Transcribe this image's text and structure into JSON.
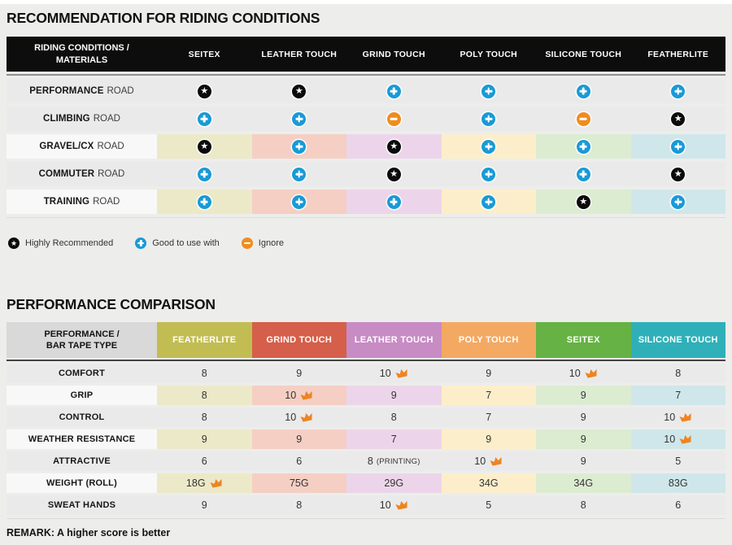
{
  "palette": {
    "page_bg": "#ededec",
    "table1_header_bg": "#0d0d0d",
    "table2_corner_bg": "#d9d9d9",
    "row_gray": "#eaeaea",
    "row_light_label": "#f8f8f8",
    "plus_blue": "#199ad6",
    "minus_orange": "#f08c1e",
    "star_black": "#0b0b0b",
    "crown_orange": "#ee8421",
    "tints": [
      "#ece9c8",
      "#f5cfc3",
      "#ecd5ea",
      "#fdeecb",
      "#dcecd1",
      "#cfe7ea"
    ]
  },
  "section1": {
    "title": "RECOMMENDATION FOR RIDING CONDITIONS",
    "table": {
      "corner_line1": "RIDING CONDITIONS /",
      "corner_line2": "MATERIALS",
      "columns": [
        "SEITEX",
        "LEATHER TOUCH",
        "GRIND TOUCH",
        "POLY TOUCH",
        "SILICONE TOUCH",
        "FEATHERLITE"
      ],
      "rows": [
        {
          "label_bold": "PERFORMANCE",
          "label_rest": "ROAD",
          "tinted": false,
          "cells": [
            "star",
            "star",
            "plus",
            "plus",
            "plus",
            "plus"
          ]
        },
        {
          "label_bold": "CLIMBING",
          "label_rest": "ROAD",
          "tinted": false,
          "cells": [
            "plus",
            "plus",
            "minus",
            "plus",
            "minus",
            "star"
          ]
        },
        {
          "label_bold": "GRAVEL/CX",
          "label_rest": "ROAD",
          "tinted": true,
          "cells": [
            "star",
            "plus",
            "star",
            "plus",
            "plus",
            "plus"
          ]
        },
        {
          "label_bold": "COMMUTER",
          "label_rest": "ROAD",
          "tinted": false,
          "cells": [
            "plus",
            "plus",
            "star",
            "plus",
            "plus",
            "star"
          ]
        },
        {
          "label_bold": "TRAINING",
          "label_rest": "ROAD",
          "tinted": true,
          "cells": [
            "plus",
            "plus",
            "plus",
            "plus",
            "star",
            "plus"
          ]
        }
      ]
    },
    "legend": [
      {
        "icon": "star",
        "label": "Highly Recommended"
      },
      {
        "icon": "plus",
        "label": "Good to use with"
      },
      {
        "icon": "minus",
        "label": "Ignore"
      }
    ]
  },
  "section2": {
    "title": "PERFORMANCE COMPARISON",
    "table": {
      "corner_line1": "PERFORMANCE /",
      "corner_line2": "BAR TAPE TYPE",
      "columns": [
        {
          "label": "FEATHERLITE",
          "color": "#c2bd53"
        },
        {
          "label": "GRIND TOUCH",
          "color": "#d55f4a"
        },
        {
          "label": "LEATHER TOUCH",
          "color": "#c78cc4"
        },
        {
          "label": "POLY TOUCH",
          "color": "#f4a963"
        },
        {
          "label": "SEITEX",
          "color": "#66b244"
        },
        {
          "label": "SILICONE TOUCH",
          "color": "#2fb0b8"
        }
      ],
      "rows": [
        {
          "label": "COMFORT",
          "tinted": false,
          "cells": [
            {
              "v": "8"
            },
            {
              "v": "9"
            },
            {
              "v": "10",
              "crown": true
            },
            {
              "v": "9"
            },
            {
              "v": "10",
              "crown": true
            },
            {
              "v": "8"
            }
          ]
        },
        {
          "label": "GRIP",
          "tinted": true,
          "cells": [
            {
              "v": "8"
            },
            {
              "v": "10",
              "crown": true
            },
            {
              "v": "9"
            },
            {
              "v": "7"
            },
            {
              "v": "9"
            },
            {
              "v": "7"
            }
          ]
        },
        {
          "label": "CONTROL",
          "tinted": false,
          "cells": [
            {
              "v": "8"
            },
            {
              "v": "10",
              "crown": true
            },
            {
              "v": "8"
            },
            {
              "v": "7"
            },
            {
              "v": "9"
            },
            {
              "v": "10",
              "crown": true
            }
          ]
        },
        {
          "label": "WEATHER RESISTANCE",
          "tinted": true,
          "cells": [
            {
              "v": "9"
            },
            {
              "v": "9"
            },
            {
              "v": "7"
            },
            {
              "v": "9"
            },
            {
              "v": "9"
            },
            {
              "v": "10",
              "crown": true
            }
          ]
        },
        {
          "label": "ATTRACTIVE",
          "tinted": false,
          "cells": [
            {
              "v": "6"
            },
            {
              "v": "6"
            },
            {
              "v": "8",
              "note": "(PRINTING)"
            },
            {
              "v": "10",
              "crown": true
            },
            {
              "v": "9"
            },
            {
              "v": "5"
            }
          ]
        },
        {
          "label": "WEIGHT (ROLL)",
          "tinted": true,
          "cells": [
            {
              "v": "18G",
              "crown": true
            },
            {
              "v": "75G"
            },
            {
              "v": "29G"
            },
            {
              "v": "34G"
            },
            {
              "v": "34G"
            },
            {
              "v": "83G"
            }
          ]
        },
        {
          "label": "SWEAT HANDS",
          "tinted": false,
          "cells": [
            {
              "v": "9"
            },
            {
              "v": "8"
            },
            {
              "v": "10",
              "crown": true
            },
            {
              "v": "5"
            },
            {
              "v": "8"
            },
            {
              "v": "6"
            }
          ]
        }
      ]
    },
    "remark": "REMARK: A higher score is better"
  },
  "chart_data": [
    {
      "type": "table",
      "title": "RECOMMENDATION FOR RIDING CONDITIONS",
      "row_header": "RIDING CONDITIONS / MATERIALS",
      "columns": [
        "SEITEX",
        "LEATHER TOUCH",
        "GRIND TOUCH",
        "POLY TOUCH",
        "SILICONE TOUCH",
        "FEATHERLITE"
      ],
      "rows": [
        "PERFORMANCE ROAD",
        "CLIMBING ROAD",
        "GRAVEL/CX ROAD",
        "COMMUTER ROAD",
        "TRAINING ROAD"
      ],
      "values": [
        [
          "highly_recommended",
          "highly_recommended",
          "good_to_use_with",
          "good_to_use_with",
          "good_to_use_with",
          "good_to_use_with"
        ],
        [
          "good_to_use_with",
          "good_to_use_with",
          "ignore",
          "good_to_use_with",
          "ignore",
          "highly_recommended"
        ],
        [
          "highly_recommended",
          "good_to_use_with",
          "highly_recommended",
          "good_to_use_with",
          "good_to_use_with",
          "good_to_use_with"
        ],
        [
          "good_to_use_with",
          "good_to_use_with",
          "highly_recommended",
          "good_to_use_with",
          "good_to_use_with",
          "highly_recommended"
        ],
        [
          "good_to_use_with",
          "good_to_use_with",
          "good_to_use_with",
          "good_to_use_with",
          "highly_recommended",
          "good_to_use_with"
        ]
      ],
      "legend": [
        "Highly Recommended",
        "Good to use with",
        "Ignore"
      ]
    },
    {
      "type": "table",
      "title": "PERFORMANCE COMPARISON",
      "row_header": "PERFORMANCE / BAR TAPE TYPE",
      "columns": [
        "FEATHERLITE",
        "GRIND TOUCH",
        "LEATHER TOUCH",
        "POLY TOUCH",
        "SEITEX",
        "SILICONE TOUCH"
      ],
      "rows": [
        "COMFORT",
        "GRIP",
        "CONTROL",
        "WEATHER RESISTANCE",
        "ATTRACTIVE",
        "WEIGHT (ROLL)",
        "SWEAT HANDS"
      ],
      "values": [
        [
          "8",
          "9",
          "10 (best)",
          "9",
          "10 (best)",
          "8"
        ],
        [
          "8",
          "10 (best)",
          "9",
          "7",
          "9",
          "7"
        ],
        [
          "8",
          "10 (best)",
          "8",
          "7",
          "9",
          "10 (best)"
        ],
        [
          "9",
          "9",
          "7",
          "9",
          "9",
          "10 (best)"
        ],
        [
          "6",
          "6",
          "8 (PRINTING)",
          "10 (best)",
          "9",
          "5"
        ],
        [
          "18G (best)",
          "75G",
          "29G",
          "34G",
          "34G",
          "83G"
        ],
        [
          "9",
          "8",
          "10 (best)",
          "5",
          "8",
          "6"
        ]
      ],
      "remark": "REMARK: A higher score is better"
    }
  ]
}
